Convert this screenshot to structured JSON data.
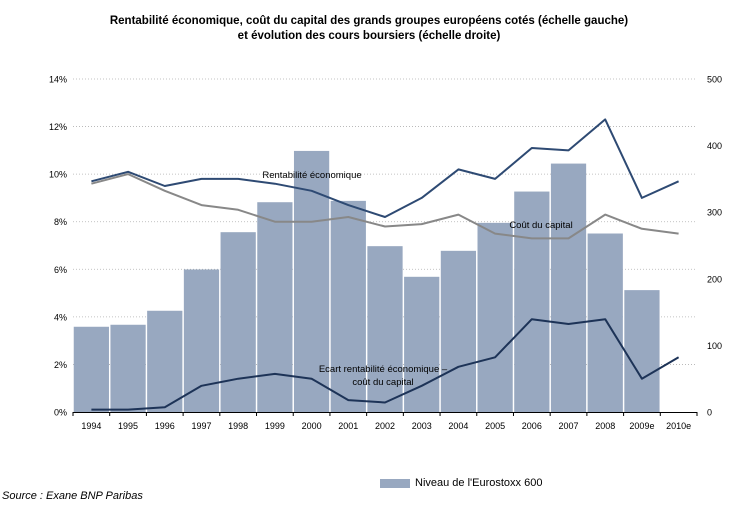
{
  "title": {
    "line1": "Rentabilité économique, coût du capital des grands groupes européens cotés (échelle gauche)",
    "line2": "et évolution des cours boursiers (échelle droite)"
  },
  "source": "Source : Exane BNP Paribas",
  "legend": {
    "label": "Niveau de l'Eurostoxx 600",
    "color": "#98a8c0"
  },
  "chart_data": {
    "type": "bar+line",
    "categories": [
      "1994",
      "1995",
      "1996",
      "1997",
      "1998",
      "1999",
      "2000",
      "2001",
      "2002",
      "2003",
      "2004",
      "2005",
      "2006",
      "2007",
      "2008",
      "2009e",
      "2010e"
    ],
    "y_left": {
      "ticks": [
        "0%",
        "2%",
        "4%",
        "6%",
        "8%",
        "10%",
        "12%",
        "14%"
      ],
      "ylim": [
        0,
        14
      ]
    },
    "y_right": {
      "ticks": [
        "0",
        "100",
        "200",
        "300",
        "400",
        "500"
      ],
      "ylim": [
        0,
        500
      ]
    },
    "bars": {
      "name": "Niveau de l'Eurostoxx 600",
      "axis": "right",
      "color": "#98a8c0",
      "values": [
        128,
        131,
        152,
        214,
        270,
        315,
        392,
        317,
        249,
        203,
        242,
        284,
        331,
        373,
        268,
        183,
        null
      ]
    },
    "series": [
      {
        "name": "Rentabilité économique",
        "label": "Rentabilité économique",
        "axis": "left",
        "color": "#2e4a73",
        "values": [
          9.7,
          10.1,
          9.5,
          9.8,
          9.8,
          9.6,
          9.3,
          8.7,
          8.2,
          9.0,
          10.2,
          9.8,
          11.1,
          11.0,
          12.3,
          9.0,
          9.7
        ]
      },
      {
        "name": "Coût du capital",
        "label": "Coût du capital",
        "axis": "left",
        "color": "#888888",
        "values": [
          9.6,
          10.0,
          9.3,
          8.7,
          8.5,
          8.0,
          8.0,
          8.2,
          7.8,
          7.9,
          8.3,
          7.5,
          7.3,
          7.3,
          8.3,
          7.7,
          7.5
        ]
      },
      {
        "name": "Ecart rentabilité économique – coût du capital",
        "label": "Ecart rentabilité économique –\ncoût du capital",
        "axis": "left",
        "color": "#1d3357",
        "values": [
          0.1,
          0.1,
          0.2,
          1.1,
          1.4,
          1.6,
          1.4,
          0.5,
          0.4,
          1.1,
          1.9,
          2.3,
          3.9,
          3.7,
          3.9,
          1.4,
          2.3
        ]
      }
    ],
    "grid": "horizontal dotted"
  }
}
